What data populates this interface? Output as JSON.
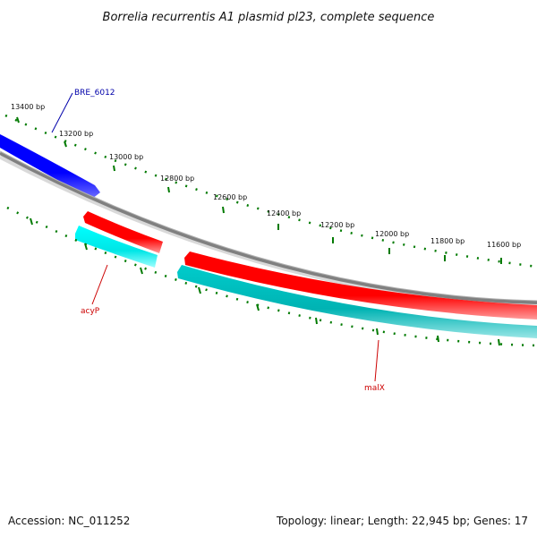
{
  "title": "Borrelia recurrentis A1 plasmid pl23, complete sequence",
  "scale": {
    "ticks_outer": [
      "13400 bp",
      "13200 bp",
      "13000 bp",
      "12800 bp",
      "12600 bp",
      "12400 bp",
      "12200 bp",
      "12000 bp",
      "11800 bp",
      "11600 bp"
    ]
  },
  "genes": {
    "bre_6012": {
      "label": "BRE_6012",
      "color": "#0000ff",
      "label_color": "#0000aa"
    },
    "acyp": {
      "label": "acyP",
      "color": "#ff0000",
      "label_color": "#cc0000"
    },
    "malx": {
      "label": "malX",
      "color": "#ff0000",
      "label_color": "#cc0000"
    }
  },
  "colors": {
    "backbone": "#808080",
    "tick": "#007a00",
    "cyan_strand": "#00dddd",
    "teal_strand": "#00b3b3"
  },
  "footer": {
    "accession": "Accession: NC_011252",
    "summary": "Topology: linear; Length: 22,945 bp; Genes: 17"
  }
}
